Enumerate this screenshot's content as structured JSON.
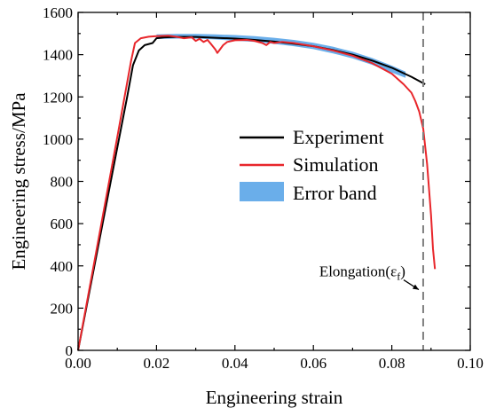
{
  "chart_data": {
    "type": "line",
    "xlabel": "Engineering strain",
    "ylabel": "Engineering stress/MPa",
    "xlim": [
      0,
      0.1
    ],
    "ylim": [
      0,
      1600
    ],
    "x_ticks": [
      0.0,
      0.02,
      0.04,
      0.06,
      0.08,
      0.1
    ],
    "x_tick_labels": [
      "0.00",
      "0.02",
      "0.04",
      "0.06",
      "0.08",
      "0.10"
    ],
    "y_ticks": [
      0,
      200,
      400,
      600,
      800,
      1000,
      1200,
      1400,
      1600
    ],
    "y_tick_labels": [
      "0",
      "200",
      "400",
      "600",
      "800",
      "1000",
      "1200",
      "1400",
      "1600"
    ],
    "grid": false,
    "legend_placement": "center-right",
    "colors": {
      "experiment": "#000000",
      "simulation": "#e8262b",
      "error_band": "#6aaeea",
      "elongation_line": "#808080"
    },
    "series": [
      {
        "name": "Experiment",
        "key": "experiment",
        "x": [
          0.0,
          0.005,
          0.01,
          0.0125,
          0.014,
          0.0155,
          0.017,
          0.019,
          0.02,
          0.022,
          0.025,
          0.03,
          0.035,
          0.04,
          0.045,
          0.05,
          0.055,
          0.06,
          0.065,
          0.07,
          0.075,
          0.08,
          0.085,
          0.0885
        ],
        "y": [
          0,
          480,
          960,
          1200,
          1350,
          1420,
          1445,
          1455,
          1478,
          1482,
          1484,
          1484,
          1480,
          1476,
          1470,
          1462,
          1452,
          1440,
          1422,
          1400,
          1372,
          1338,
          1295,
          1260
        ]
      },
      {
        "name": "Simulation",
        "key": "simulation",
        "x": [
          0.0,
          0.005,
          0.01,
          0.0135,
          0.0145,
          0.016,
          0.018,
          0.02,
          0.023,
          0.025,
          0.027,
          0.029,
          0.03,
          0.031,
          0.032,
          0.033,
          0.034,
          0.035,
          0.0355,
          0.036,
          0.037,
          0.038,
          0.04,
          0.043,
          0.045,
          0.047,
          0.048,
          0.049,
          0.05,
          0.052,
          0.055,
          0.06,
          0.065,
          0.07,
          0.075,
          0.08,
          0.083,
          0.085,
          0.086,
          0.087,
          0.088,
          0.089,
          0.09,
          0.0905,
          0.091
        ],
        "y": [
          0,
          505,
          1010,
          1370,
          1455,
          1478,
          1485,
          1488,
          1490,
          1485,
          1478,
          1482,
          1465,
          1475,
          1460,
          1470,
          1448,
          1425,
          1408,
          1420,
          1445,
          1460,
          1468,
          1470,
          1465,
          1455,
          1445,
          1460,
          1455,
          1460,
          1455,
          1440,
          1420,
          1395,
          1360,
          1310,
          1260,
          1220,
          1180,
          1130,
          1050,
          880,
          640,
          480,
          385
        ]
      },
      {
        "name": "Error band",
        "key": "error_band",
        "x": [
          0.02,
          0.025,
          0.03,
          0.035,
          0.04,
          0.045,
          0.05,
          0.055,
          0.06,
          0.065,
          0.07,
          0.075,
          0.08,
          0.0835
        ],
        "y_upper": [
          1496,
          1498,
          1498,
          1496,
          1493,
          1488,
          1480,
          1470,
          1456,
          1438,
          1414,
          1384,
          1348,
          1320
        ],
        "y_lower": [
          1474,
          1476,
          1476,
          1472,
          1466,
          1460,
          1451,
          1440,
          1426,
          1406,
          1382,
          1352,
          1315,
          1290
        ]
      }
    ],
    "elongation_x": 0.088,
    "annotation": {
      "text": "Elongation(",
      "symbol": "ε",
      "subscript": "f",
      "close": ")",
      "x": 0.0615,
      "y": 300
    }
  }
}
